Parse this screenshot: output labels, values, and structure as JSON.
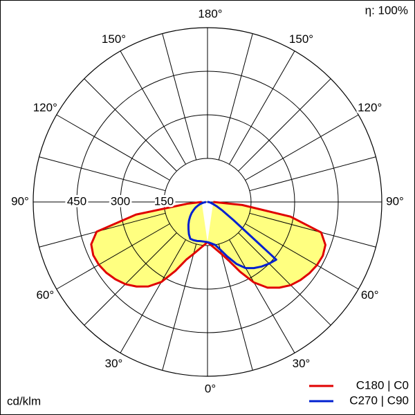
{
  "chart_data": {
    "type": "polar",
    "unit_label": "cd/klm",
    "efficiency_label": "η: 100%",
    "rlim": [
      0,
      600
    ],
    "rticks": [
      150,
      300,
      450
    ],
    "thetaticks": [
      {
        "value": 0,
        "label": "0°"
      },
      {
        "value": 30,
        "label": "30°"
      },
      {
        "value": 60,
        "label": "60°"
      },
      {
        "value": 90,
        "label": "90°"
      },
      {
        "value": 120,
        "label": "120°"
      },
      {
        "value": 150,
        "label": "150°"
      },
      {
        "value": 180,
        "label": "180°"
      }
    ],
    "minor_thetaticks": [
      15,
      45,
      75,
      105,
      135,
      165
    ],
    "grid": true,
    "legend": "lower right",
    "theta": [
      0,
      5,
      10,
      15,
      20,
      25,
      30,
      35,
      40,
      45,
      50,
      55,
      60,
      65,
      70,
      75,
      80,
      85,
      90
    ],
    "series": [
      {
        "name": "C180 | C0",
        "color": "#e00000",
        "fill": "#ffff80",
        "left": [
          138,
          150,
          165,
          185,
          210,
          262,
          318,
          355,
          380,
          400,
          414,
          425,
          432,
          434,
          426,
          395,
          250,
          70,
          20
        ],
        "right": [
          138,
          150,
          165,
          185,
          215,
          265,
          320,
          360,
          385,
          405,
          418,
          428,
          435,
          438,
          432,
          405,
          290,
          120,
          20
        ]
      },
      {
        "name": "C270 | C90",
        "color": "#0020d0",
        "left": [
          138,
          137,
          137,
          139,
          140,
          140,
          128,
          114,
          102,
          90,
          78,
          67,
          55,
          45,
          34,
          25,
          15,
          8,
          5
        ],
        "right": [
          138,
          143,
          150,
          170,
          200,
          235,
          263,
          278,
          290,
          300,
          309,
          110,
          60,
          35,
          20,
          12,
          8,
          4,
          0
        ]
      }
    ]
  }
}
